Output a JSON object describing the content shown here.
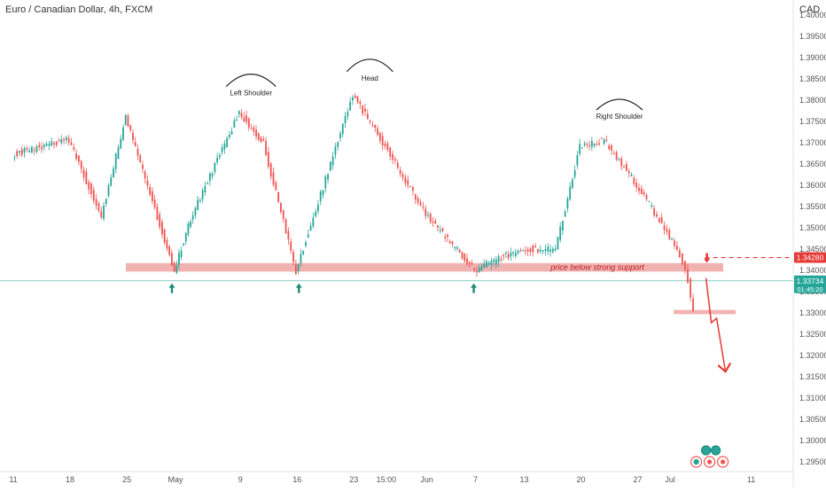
{
  "header": {
    "symbol_title": "Euro / Canadian Dollar, 4h, FXCM",
    "currency": "CAD"
  },
  "chart_data": {
    "type": "candlestick",
    "title": "Euro / Canadian Dollar, 4h, FXCM",
    "yaxis": {
      "unit": "CAD",
      "range": [
        1.2925,
        1.4
      ]
    },
    "price_ticks": [
      "1.40000",
      "1.39500",
      "1.39000",
      "1.38500",
      "1.38000",
      "1.37500",
      "1.37000",
      "1.36500",
      "1.36000",
      "1.35500",
      "1.35000",
      "1.34500",
      "1.34000",
      "1.33500",
      "1.33000",
      "1.32500",
      "1.32000",
      "1.31500",
      "1.31000",
      "1.30500",
      "1.30000",
      "1.29500"
    ],
    "x_ticks": [
      "11",
      "18",
      "25",
      "May",
      "9",
      "16",
      "23",
      "15:00",
      "Jun",
      "7",
      "13",
      "20",
      "27",
      "Jul",
      "11"
    ],
    "key_points": [
      {
        "x": "11",
        "y": 1.367
      },
      {
        "x": "18",
        "y": 1.3705
      },
      {
        "x": "Apr 22",
        "y": 1.3525
      },
      {
        "x": "25",
        "y": 1.376
      },
      {
        "x": "May",
        "y": 1.3397
      },
      {
        "x": "May 3",
        "y": 1.352
      },
      {
        "x": "9",
        "y": 1.377
      },
      {
        "x": "May 12",
        "y": 1.3695
      },
      {
        "x": "16",
        "y": 1.3396
      },
      {
        "x": "23",
        "y": 1.381
      },
      {
        "x": "15:00",
        "y": 1.369
      },
      {
        "x": "Jun",
        "y": 1.353
      },
      {
        "x": "7",
        "y": 1.3398
      },
      {
        "x": "13",
        "y": 1.345
      },
      {
        "x": "Jun 17",
        "y": 1.3445
      },
      {
        "x": "20",
        "y": 1.369
      },
      {
        "x": "Jun 23",
        "y": 1.3705
      },
      {
        "x": "27",
        "y": 1.36
      },
      {
        "x": "Jul 2",
        "y": 1.345
      },
      {
        "x": "Jul 3",
        "y": 1.3405
      },
      {
        "x": "Jul 4",
        "y": 1.3305
      },
      {
        "x": "Jul 4",
        "y": 1.33734
      }
    ],
    "support_zone": [
      1.3395,
      1.3415
    ],
    "target_zone": [
      1.3295,
      1.3305
    ],
    "horizontal_line_level": 1.3428,
    "price_line_level": 1.33734,
    "price_labels": [
      {
        "id": "dashed_level",
        "text": "1.34280",
        "color": "#e53935"
      },
      {
        "id": "current",
        "text": "1.33734",
        "subtext": "01:45:20",
        "color": "#26a69a"
      }
    ],
    "annotations": {
      "left_shoulder": "Left Shoulder",
      "head": "Head",
      "right_shoulder": "Right Shoulder",
      "support_text": "price below strong support"
    }
  },
  "colors": {
    "up": "#26a69a",
    "down": "#ef5350",
    "zone": "#e57373",
    "arrow_up": "#1f8a78",
    "arrow_down": "#e53935",
    "text": "#333333",
    "axis_text": "#555555"
  },
  "icons": [
    "arrow-up-icon",
    "arrow-down-icon",
    "event-icons"
  ]
}
